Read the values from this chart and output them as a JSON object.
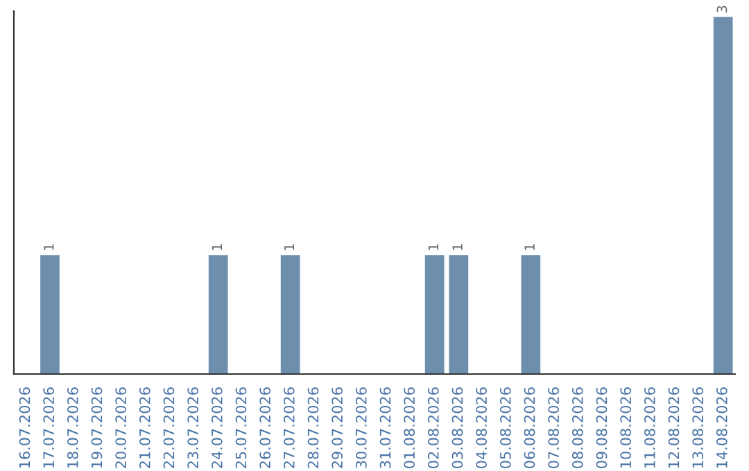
{
  "chart_data": {
    "type": "bar",
    "categories": [
      "16.07.2026",
      "17.07.2026",
      "18.07.2026",
      "19.07.2026",
      "20.07.2026",
      "21.07.2026",
      "22.07.2026",
      "23.07.2026",
      "24.07.2026",
      "25.07.2026",
      "26.07.2026",
      "27.07.2026",
      "28.07.2026",
      "29.07.2026",
      "30.07.2026",
      "31.07.2026",
      "01.08.2026",
      "02.08.2026",
      "03.08.2026",
      "04.08.2026",
      "05.08.2026",
      "06.08.2026",
      "07.08.2026",
      "08.08.2026",
      "09.08.2026",
      "10.08.2026",
      "11.08.2026",
      "12.08.2026",
      "13.08.2026",
      "14.08.2026"
    ],
    "values": [
      0,
      1,
      0,
      0,
      0,
      0,
      0,
      0,
      1,
      0,
      0,
      1,
      0,
      0,
      0,
      0,
      0,
      1,
      1,
      0,
      0,
      1,
      0,
      0,
      0,
      0,
      0,
      0,
      0,
      3
    ],
    "value_labels": [
      null,
      "1",
      null,
      null,
      null,
      null,
      null,
      null,
      "1",
      null,
      null,
      "1",
      null,
      null,
      null,
      null,
      null,
      "1",
      "1",
      null,
      null,
      "1",
      null,
      null,
      null,
      null,
      null,
      null,
      null,
      "3"
    ],
    "color": "#6d8fad",
    "ylim": [
      0,
      3.05
    ],
    "tick_labels": "x",
    "grid": false,
    "legend": false
  }
}
